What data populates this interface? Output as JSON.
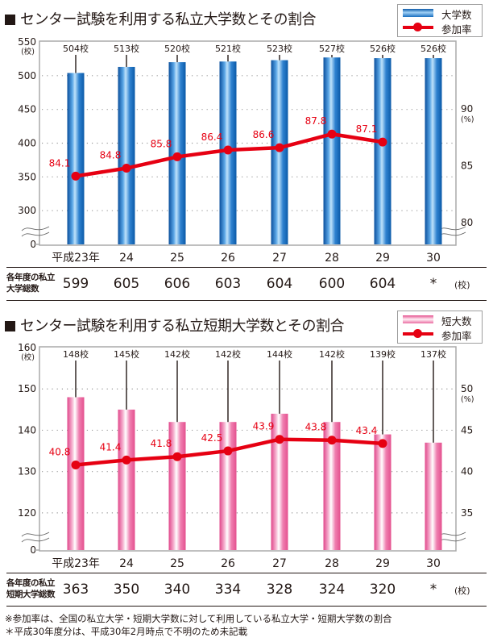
{
  "chart_data": [
    {
      "type": "bar",
      "title": "センター試験を利用する私立大学数とその割合",
      "categories": [
        "平成23年",
        "24",
        "25",
        "26",
        "27",
        "28",
        "29",
        "30"
      ],
      "legend": [
        "大学数",
        "参加率"
      ],
      "legend_position": "top-right",
      "series": [
        {
          "name": "大学数",
          "type": "bar",
          "axis": "left",
          "values": [
            504,
            513,
            520,
            521,
            523,
            527,
            526,
            526
          ],
          "labels": [
            "504校",
            "513校",
            "520校",
            "521校",
            "523校",
            "527校",
            "526校",
            "526校"
          ]
        },
        {
          "name": "参加率",
          "type": "line",
          "axis": "right",
          "values": [
            84.1,
            84.8,
            85.8,
            86.4,
            86.6,
            87.8,
            87.1,
            null
          ],
          "labels": [
            "84.1",
            "84.8",
            "85.8",
            "86.4",
            "86.6",
            "87.8",
            "87.1",
            ""
          ]
        }
      ],
      "left_axis": {
        "unit": "(校)",
        "ticks": [
          0,
          300,
          350,
          400,
          450,
          500,
          550
        ],
        "range": [
          250,
          550
        ],
        "broken": true
      },
      "right_axis": {
        "unit": "(%)",
        "ticks": [
          80,
          85,
          90
        ],
        "range": [
          78.1,
          95.9
        ],
        "broken": true
      },
      "grid": "dotted",
      "table": {
        "header": [
          "各年度の私立",
          "大学総数"
        ],
        "values": [
          "599",
          "605",
          "606",
          "603",
          "604",
          "600",
          "604",
          "*"
        ],
        "unit": "(校)"
      },
      "colors": {
        "bar": "#1a6fc0",
        "line": "#e60012",
        "label": "#e60012"
      }
    },
    {
      "type": "bar",
      "title": "センター試験を利用する私立短期大学数とその割合",
      "categories": [
        "平成23年",
        "24",
        "25",
        "26",
        "27",
        "28",
        "29",
        "30"
      ],
      "legend": [
        "短大数",
        "参加率"
      ],
      "legend_position": "top-right",
      "series": [
        {
          "name": "短大数",
          "type": "bar",
          "axis": "left",
          "values": [
            148,
            145,
            142,
            142,
            144,
            142,
            139,
            137
          ],
          "labels": [
            "148校",
            "145校",
            "142校",
            "142校",
            "144校",
            "142校",
            "139校",
            "137校"
          ]
        },
        {
          "name": "参加率",
          "type": "line",
          "axis": "right",
          "values": [
            40.8,
            41.4,
            41.8,
            42.5,
            43.9,
            43.8,
            43.4,
            null
          ],
          "labels": [
            "40.8",
            "41.4",
            "41.8",
            "42.5",
            "43.9",
            "43.8",
            "43.4",
            ""
          ]
        }
      ],
      "left_axis": {
        "unit": "(校)",
        "ticks": [
          0,
          120,
          130,
          140,
          150,
          160
        ],
        "range": [
          111,
          160
        ],
        "broken": true
      },
      "right_axis": {
        "unit": "(%)",
        "ticks": [
          35,
          40,
          45,
          50
        ],
        "range": [
          30.5,
          55
        ],
        "broken": true
      },
      "grid": "dotted",
      "table": {
        "header": [
          "各年度の私立",
          "短期大学総数"
        ],
        "values": [
          "363",
          "350",
          "340",
          "334",
          "328",
          "324",
          "320",
          "*"
        ],
        "unit": "(校)"
      },
      "colors": {
        "bar": "#e4508e",
        "line": "#e60012",
        "label": "#e60012"
      }
    }
  ],
  "notes": [
    "※参加率は、全国の私立大学・短期大学数に対して利用している私立大学・短期大学数の割合",
    "＊平成30年度分は、平成30年2月時点で不明のため未記載"
  ]
}
